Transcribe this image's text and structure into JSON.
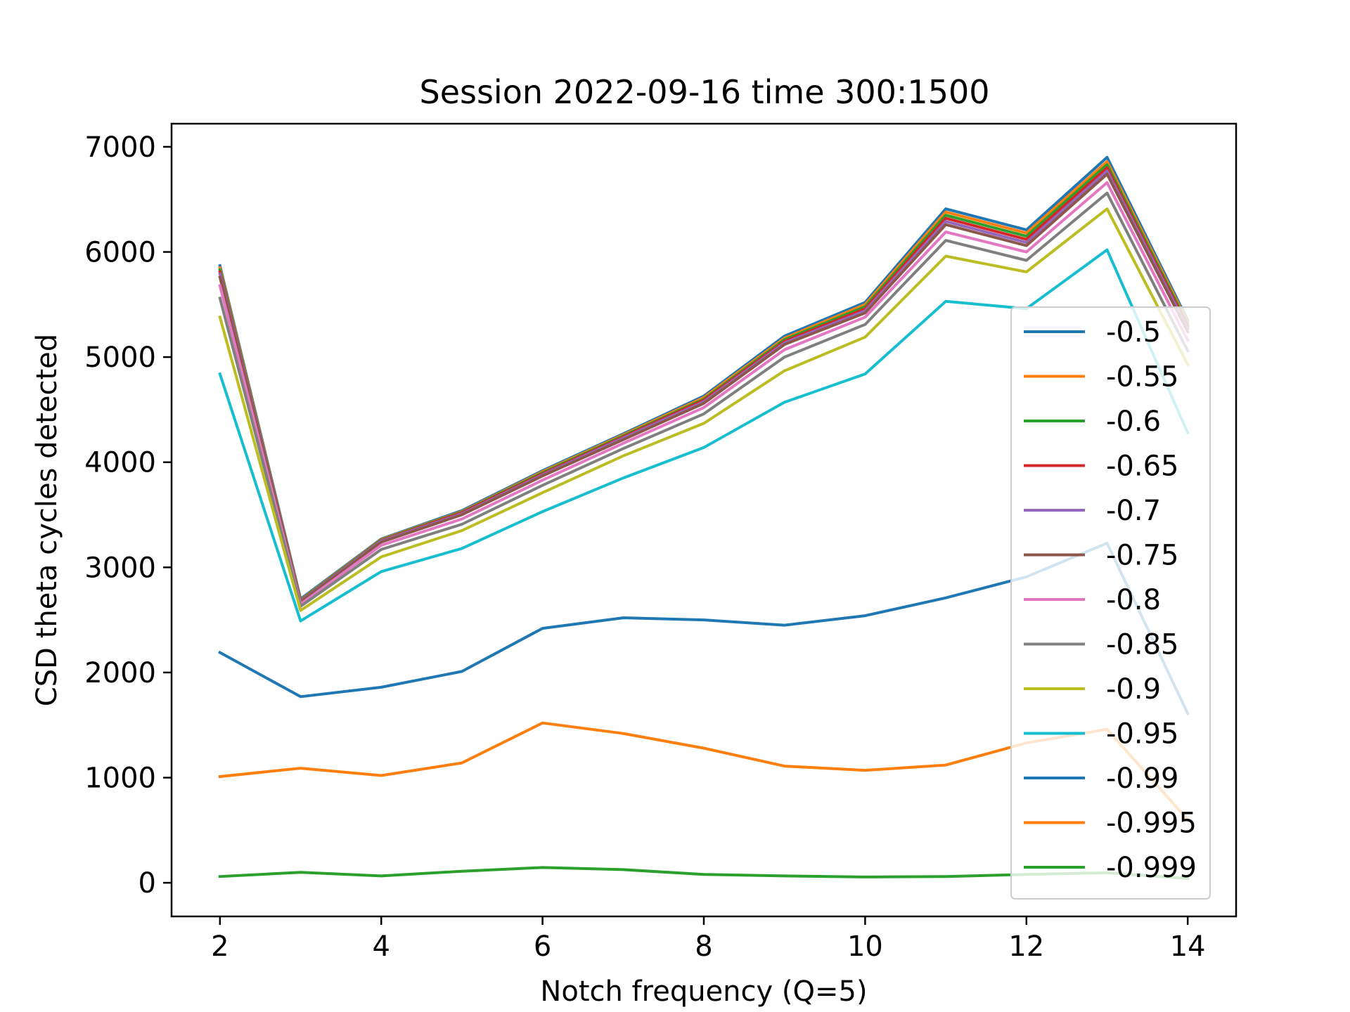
{
  "chart_data": {
    "type": "line",
    "title": "Session 2022-09-16 time 300:1500",
    "xlabel": "Notch frequency (Q=5)",
    "ylabel": "CSD theta cycles detected",
    "xlim": [
      1.4,
      14.6
    ],
    "ylim": [
      -320,
      7220
    ],
    "xticks": [
      2,
      4,
      6,
      8,
      10,
      12,
      14
    ],
    "xtick_labels": [
      "2",
      "4",
      "6",
      "8",
      "10",
      "12",
      "14"
    ],
    "yticks": [
      0,
      1000,
      2000,
      3000,
      4000,
      5000,
      6000,
      7000
    ],
    "ytick_labels": [
      "0",
      "1000",
      "2000",
      "3000",
      "4000",
      "5000",
      "6000",
      "7000"
    ],
    "grid": false,
    "legend_position": "right",
    "x": [
      2,
      3,
      4,
      5,
      6,
      7,
      8,
      9,
      10,
      11,
      12,
      13,
      14
    ],
    "series": [
      {
        "name": "-0.5",
        "color": "#1f77b4",
        "values": [
          5870,
          2700,
          3270,
          3540,
          3920,
          4270,
          4630,
          5200,
          5520,
          6410,
          6210,
          6900,
          5350
        ]
      },
      {
        "name": "-0.55",
        "color": "#ff7f0e",
        "values": [
          5850,
          2690,
          3265,
          3530,
          3910,
          4260,
          4615,
          5180,
          5500,
          6380,
          6180,
          6860,
          5330
        ]
      },
      {
        "name": "-0.6",
        "color": "#2ca02c",
        "values": [
          5830,
          2685,
          3260,
          3525,
          3900,
          4250,
          4600,
          5165,
          5480,
          6350,
          6150,
          6830,
          5310
        ]
      },
      {
        "name": "-0.65",
        "color": "#d62728",
        "values": [
          5810,
          2680,
          3255,
          3520,
          3890,
          4240,
          4590,
          5150,
          5460,
          6320,
          6120,
          6800,
          5290
        ]
      },
      {
        "name": "-0.7",
        "color": "#9467bd",
        "values": [
          5790,
          2675,
          3250,
          3510,
          3880,
          4230,
          4575,
          5135,
          5440,
          6290,
          6090,
          6770,
          5270
        ]
      },
      {
        "name": "-0.75",
        "color": "#8c564b",
        "values": [
          5760,
          2670,
          3240,
          3500,
          3870,
          4215,
          4560,
          5120,
          5420,
          6260,
          6060,
          6740,
          5240
        ]
      },
      {
        "name": "-0.8",
        "color": "#e377c2",
        "values": [
          5680,
          2650,
          3210,
          3460,
          3830,
          4180,
          4520,
          5070,
          5380,
          6190,
          6000,
          6660,
          5160
        ]
      },
      {
        "name": "-0.85",
        "color": "#7f7f7f",
        "values": [
          5560,
          2630,
          3170,
          3410,
          3780,
          4130,
          4460,
          5000,
          5310,
          6110,
          5920,
          6560,
          5060
        ]
      },
      {
        "name": "-0.9",
        "color": "#bcbd22",
        "values": [
          5380,
          2590,
          3100,
          3350,
          3710,
          4060,
          4370,
          4870,
          5190,
          5960,
          5810,
          6410,
          4930
        ]
      },
      {
        "name": "-0.95",
        "color": "#17becf",
        "values": [
          4840,
          2490,
          2960,
          3180,
          3530,
          3850,
          4140,
          4570,
          4840,
          5530,
          5460,
          6020,
          4280
        ]
      },
      {
        "name": "-0.99",
        "color": "#1f77b4",
        "values": [
          2190,
          1770,
          1860,
          2010,
          2420,
          2520,
          2500,
          2450,
          2540,
          2710,
          2910,
          3230,
          1610
        ]
      },
      {
        "name": "-0.995",
        "color": "#ff7f0e",
        "values": [
          1010,
          1090,
          1020,
          1140,
          1520,
          1420,
          1280,
          1110,
          1070,
          1120,
          1330,
          1460,
          600
        ]
      },
      {
        "name": "-0.999",
        "color": "#2ca02c",
        "values": [
          60,
          100,
          65,
          110,
          145,
          125,
          80,
          65,
          55,
          60,
          80,
          95,
          40
        ]
      }
    ]
  }
}
